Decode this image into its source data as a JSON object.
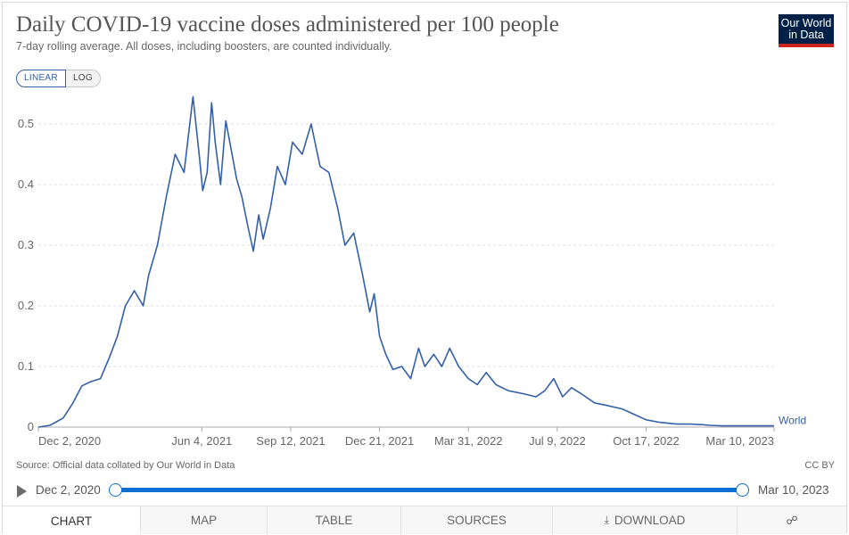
{
  "header": {
    "title": "Daily COVID-19 vaccine doses administered per 100 people",
    "subtitle": "7-day rolling average. All doses, including boosters, are counted individually."
  },
  "logo": {
    "line1": "Our World",
    "line2": "in Data"
  },
  "scale_toggle": {
    "linear": "LINEAR",
    "log": "LOG",
    "selected": "LINEAR"
  },
  "footer": {
    "source": "Source: Official data collated by Our World in Data",
    "license": "CC BY"
  },
  "timeline": {
    "start_label": "Dec 2, 2020",
    "end_label": "Mar 10, 2023"
  },
  "tabs": {
    "chart": "CHART",
    "map": "MAP",
    "table": "TABLE",
    "sources": "SOURCES",
    "download": "DOWNLOAD"
  },
  "icons": {
    "play": "play-icon",
    "download": "download-icon",
    "share": "share-icon"
  },
  "colors": {
    "line": "#3360a9",
    "brand_navy": "#002147",
    "brand_red": "#ce261e",
    "timeline": "#0b6fd1"
  },
  "chart_data": {
    "type": "line",
    "title": "Daily COVID-19 vaccine doses administered per 100 people",
    "xlabel": "",
    "ylabel": "",
    "ylim": [
      0,
      0.55
    ],
    "x_ticks": [
      "Dec 2, 2020",
      "Jun 4, 2021",
      "Sep 12, 2021",
      "Dec 21, 2021",
      "Mar 31, 2022",
      "Jul 9, 2022",
      "Oct 17, 2022",
      "Mar 10, 2023"
    ],
    "y_ticks": [
      "0",
      "0.1",
      "0.2",
      "0.3",
      "0.4",
      "0.5"
    ],
    "grid": "horizontal dashed",
    "series": [
      {
        "name": "World",
        "x": [
          "2020-12-02",
          "2020-12-15",
          "2020-12-30",
          "2021-01-10",
          "2021-01-20",
          "2021-01-30",
          "2021-02-10",
          "2021-02-20",
          "2021-03-01",
          "2021-03-10",
          "2021-03-20",
          "2021-03-30",
          "2021-04-05",
          "2021-04-15",
          "2021-04-25",
          "2021-05-05",
          "2021-05-15",
          "2021-05-25",
          "2021-06-01",
          "2021-06-05",
          "2021-06-10",
          "2021-06-15",
          "2021-06-19",
          "2021-06-25",
          "2021-07-01",
          "2021-07-08",
          "2021-07-13",
          "2021-07-19",
          "2021-07-26",
          "2021-08-01",
          "2021-08-07",
          "2021-08-12",
          "2021-08-20",
          "2021-08-28",
          "2021-09-06",
          "2021-09-14",
          "2021-09-25",
          "2021-10-05",
          "2021-10-15",
          "2021-10-25",
          "2021-11-04",
          "2021-11-12",
          "2021-11-22",
          "2021-12-02",
          "2021-12-10",
          "2021-12-15",
          "2021-12-21",
          "2021-12-28",
          "2022-01-05",
          "2022-01-15",
          "2022-01-25",
          "2022-02-03",
          "2022-02-10",
          "2022-02-20",
          "2022-03-01",
          "2022-03-10",
          "2022-03-20",
          "2022-03-31",
          "2022-04-10",
          "2022-04-20",
          "2022-05-01",
          "2022-05-15",
          "2022-06-01",
          "2022-06-15",
          "2022-06-25",
          "2022-07-05",
          "2022-07-15",
          "2022-07-25",
          "2022-08-05",
          "2022-08-20",
          "2022-09-05",
          "2022-09-20",
          "2022-10-05",
          "2022-10-17",
          "2022-11-01",
          "2022-11-20",
          "2022-12-05",
          "2022-12-20",
          "2022-12-28",
          "2023-01-10",
          "2023-01-20",
          "2023-02-01",
          "2023-02-15",
          "2023-02-28",
          "2023-03-10"
        ],
        "values": [
          0.0,
          0.003,
          0.015,
          0.04,
          0.068,
          0.075,
          0.08,
          0.115,
          0.15,
          0.2,
          0.225,
          0.2,
          0.25,
          0.3,
          0.38,
          0.45,
          0.42,
          0.545,
          0.45,
          0.39,
          0.42,
          0.535,
          0.47,
          0.4,
          0.505,
          0.45,
          0.41,
          0.38,
          0.33,
          0.29,
          0.35,
          0.31,
          0.36,
          0.43,
          0.4,
          0.47,
          0.45,
          0.5,
          0.43,
          0.42,
          0.36,
          0.3,
          0.32,
          0.25,
          0.19,
          0.22,
          0.15,
          0.12,
          0.095,
          0.1,
          0.08,
          0.13,
          0.1,
          0.12,
          0.1,
          0.13,
          0.1,
          0.08,
          0.07,
          0.09,
          0.07,
          0.06,
          0.055,
          0.05,
          0.06,
          0.08,
          0.05,
          0.065,
          0.055,
          0.04,
          0.035,
          0.03,
          0.02,
          0.012,
          0.008,
          0.005,
          0.005,
          0.004,
          0.003,
          0.002,
          0.002,
          0.002,
          0.002,
          0.002,
          0.002
        ]
      }
    ]
  }
}
